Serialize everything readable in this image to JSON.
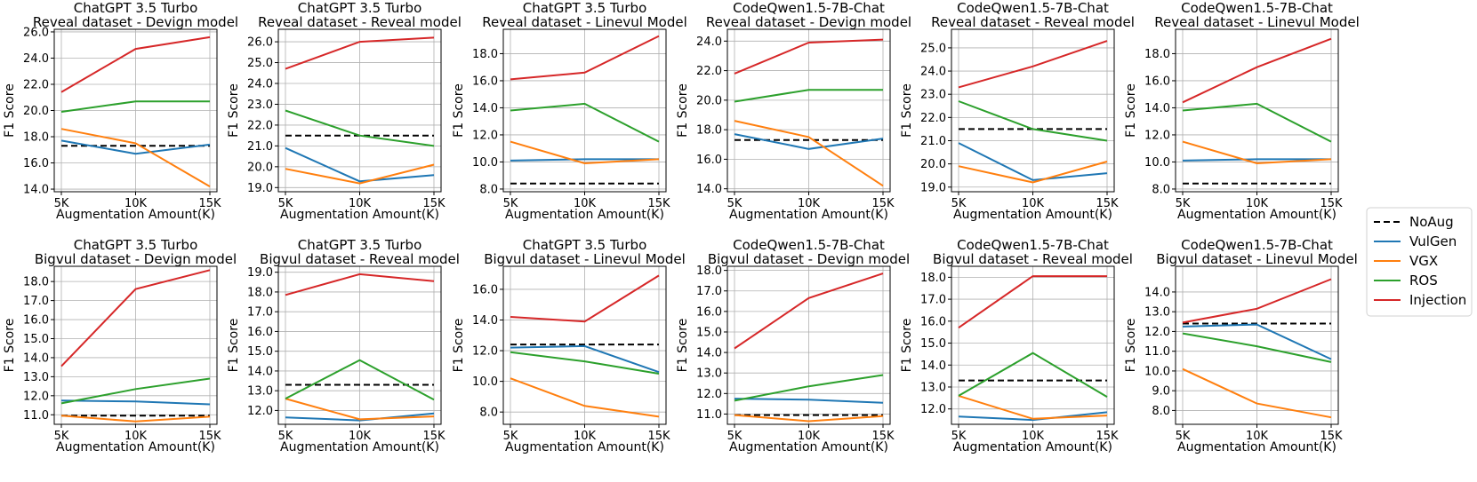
{
  "legend": {
    "position": "right",
    "entries": [
      {
        "name": "NoAug",
        "color": "#000000",
        "dashed": true
      },
      {
        "name": "VulGen",
        "color": "#1f77b4",
        "dashed": false
      },
      {
        "name": "VGX",
        "color": "#ff7f0e",
        "dashed": false
      },
      {
        "name": "ROS",
        "color": "#2ca02c",
        "dashed": false
      },
      {
        "name": "Injection",
        "color": "#d62728",
        "dashed": false
      }
    ]
  },
  "chart_data": [
    {
      "type": "line",
      "title": [
        "ChatGPT 3.5 Turbo",
        "Reveal dataset - Devign model"
      ],
      "xlabel": "Augmentation Amount(K)",
      "ylabel": "F1 Score",
      "categories": [
        "5K",
        "10K",
        "15K"
      ],
      "ylim": [
        13.8,
        26.2
      ],
      "yticks": [
        14,
        16,
        18,
        20,
        22,
        24,
        26
      ],
      "grid": true,
      "series": [
        {
          "name": "NoAug",
          "values": [
            17.3,
            17.3,
            17.3
          ]
        },
        {
          "name": "VulGen",
          "values": [
            17.7,
            16.7,
            17.4
          ]
        },
        {
          "name": "VGX",
          "values": [
            18.6,
            17.5,
            14.2
          ]
        },
        {
          "name": "ROS",
          "values": [
            19.9,
            20.7,
            20.7
          ]
        },
        {
          "name": "Injection",
          "values": [
            21.4,
            24.7,
            25.6
          ]
        }
      ]
    },
    {
      "type": "line",
      "title": [
        "ChatGPT 3.5 Turbo",
        "Reveal dataset - Reveal model"
      ],
      "xlabel": "Augmentation Amount(K)",
      "ylabel": "F1 Score",
      "categories": [
        "5K",
        "10K",
        "15K"
      ],
      "ylim": [
        18.8,
        26.6
      ],
      "yticks": [
        19,
        20,
        21,
        22,
        23,
        24,
        25,
        26
      ],
      "grid": true,
      "series": [
        {
          "name": "NoAug",
          "values": [
            21.5,
            21.5,
            21.5
          ]
        },
        {
          "name": "VulGen",
          "values": [
            20.9,
            19.3,
            19.6
          ]
        },
        {
          "name": "VGX",
          "values": [
            19.9,
            19.2,
            20.1
          ]
        },
        {
          "name": "ROS",
          "values": [
            22.7,
            21.5,
            21.0
          ]
        },
        {
          "name": "Injection",
          "values": [
            24.7,
            26.0,
            26.2
          ]
        }
      ]
    },
    {
      "type": "line",
      "title": [
        "ChatGPT 3.5 Turbo",
        "Reveal dataset - Linevul Model"
      ],
      "xlabel": "Augmentation Amount(K)",
      "ylabel": "F1 Score",
      "categories": [
        "5K",
        "10K",
        "15K"
      ],
      "ylim": [
        7.8,
        19.8
      ],
      "yticks": [
        8,
        10,
        12,
        14,
        16,
        18
      ],
      "grid": true,
      "series": [
        {
          "name": "NoAug",
          "values": [
            8.4,
            8.4,
            8.4
          ]
        },
        {
          "name": "VulGen",
          "values": [
            10.1,
            10.2,
            10.2
          ]
        },
        {
          "name": "VGX",
          "values": [
            11.5,
            9.9,
            10.2
          ]
        },
        {
          "name": "ROS",
          "values": [
            13.8,
            14.3,
            11.5
          ]
        },
        {
          "name": "Injection",
          "values": [
            16.1,
            16.6,
            19.3
          ]
        }
      ]
    },
    {
      "type": "line",
      "title": [
        "CodeQwen1.5-7B-Chat",
        "Reveal dataset - Devign model"
      ],
      "xlabel": "Augmentation Amount(K)",
      "ylabel": "F1 Score",
      "categories": [
        "5K",
        "10K",
        "15K"
      ],
      "ylim": [
        13.8,
        24.8
      ],
      "yticks": [
        14,
        16,
        18,
        20,
        22,
        24
      ],
      "grid": true,
      "series": [
        {
          "name": "NoAug",
          "values": [
            17.3,
            17.3,
            17.3
          ]
        },
        {
          "name": "VulGen",
          "values": [
            17.7,
            16.7,
            17.4
          ]
        },
        {
          "name": "VGX",
          "values": [
            18.6,
            17.5,
            14.2
          ]
        },
        {
          "name": "ROS",
          "values": [
            19.9,
            20.7,
            20.7
          ]
        },
        {
          "name": "Injection",
          "values": [
            21.8,
            23.9,
            24.1
          ]
        }
      ]
    },
    {
      "type": "line",
      "title": [
        "CodeQwen1.5-7B-Chat",
        "Reveal dataset - Reveal model"
      ],
      "xlabel": "Augmentation Amount(K)",
      "ylabel": "F1 Score",
      "categories": [
        "5K",
        "10K",
        "15K"
      ],
      "ylim": [
        18.8,
        25.8
      ],
      "yticks": [
        19,
        20,
        21,
        22,
        23,
        24,
        25
      ],
      "grid": true,
      "series": [
        {
          "name": "NoAug",
          "values": [
            21.5,
            21.5,
            21.5
          ]
        },
        {
          "name": "VulGen",
          "values": [
            20.9,
            19.3,
            19.6
          ]
        },
        {
          "name": "VGX",
          "values": [
            19.9,
            19.2,
            20.1
          ]
        },
        {
          "name": "ROS",
          "values": [
            22.7,
            21.5,
            21.0
          ]
        },
        {
          "name": "Injection",
          "values": [
            23.3,
            24.2,
            25.3
          ]
        }
      ]
    },
    {
      "type": "line",
      "title": [
        "CodeQwen1.5-7B-Chat",
        "Reveal dataset - Linevul Model"
      ],
      "xlabel": "Augmentation Amount(K)",
      "ylabel": "F1 Score",
      "categories": [
        "5K",
        "10K",
        "15K"
      ],
      "ylim": [
        7.8,
        19.8
      ],
      "yticks": [
        8,
        10,
        12,
        14,
        16,
        18
      ],
      "grid": true,
      "series": [
        {
          "name": "NoAug",
          "values": [
            8.4,
            8.4,
            8.4
          ]
        },
        {
          "name": "VulGen",
          "values": [
            10.1,
            10.2,
            10.2
          ]
        },
        {
          "name": "VGX",
          "values": [
            11.5,
            9.9,
            10.2
          ]
        },
        {
          "name": "ROS",
          "values": [
            13.8,
            14.3,
            11.5
          ]
        },
        {
          "name": "Injection",
          "values": [
            14.4,
            17.0,
            19.1
          ]
        }
      ]
    },
    {
      "type": "line",
      "title": [
        "ChatGPT 3.5 Turbo",
        "Bigvul dataset - Devign model"
      ],
      "xlabel": "Augmentation Amount(K)",
      "ylabel": "F1 Score",
      "categories": [
        "5K",
        "10K",
        "15K"
      ],
      "ylim": [
        10.5,
        18.8
      ],
      "yticks": [
        11,
        12,
        13,
        14,
        15,
        16,
        17,
        18
      ],
      "grid": true,
      "series": [
        {
          "name": "NoAug",
          "values": [
            10.95,
            10.95,
            10.95
          ]
        },
        {
          "name": "VulGen",
          "values": [
            11.75,
            11.7,
            11.55
          ]
        },
        {
          "name": "VGX",
          "values": [
            10.95,
            10.65,
            10.9
          ]
        },
        {
          "name": "ROS",
          "values": [
            11.6,
            12.35,
            12.9
          ]
        },
        {
          "name": "Injection",
          "values": [
            13.55,
            17.6,
            18.6
          ]
        }
      ]
    },
    {
      "type": "line",
      "title": [
        "ChatGPT 3.5 Turbo",
        "Bigvul dataset - Reveal model"
      ],
      "xlabel": "Augmentation Amount(K)",
      "ylabel": "F1 Score",
      "categories": [
        "5K",
        "10K",
        "15K"
      ],
      "ylim": [
        11.3,
        19.3
      ],
      "yticks": [
        12,
        13,
        14,
        15,
        16,
        17,
        18,
        19
      ],
      "grid": true,
      "series": [
        {
          "name": "NoAug",
          "values": [
            13.3,
            13.3,
            13.3
          ]
        },
        {
          "name": "VulGen",
          "values": [
            11.65,
            11.5,
            11.85
          ]
        },
        {
          "name": "VGX",
          "values": [
            12.6,
            11.55,
            11.7
          ]
        },
        {
          "name": "ROS",
          "values": [
            12.6,
            14.55,
            12.55
          ]
        },
        {
          "name": "Injection",
          "values": [
            17.85,
            18.9,
            18.55
          ]
        }
      ]
    },
    {
      "type": "line",
      "title": [
        "ChatGPT 3.5 Turbo",
        "Bigvul dataset - Linevul Model"
      ],
      "xlabel": "Augmentation Amount(K)",
      "ylabel": "F1 Score",
      "categories": [
        "5K",
        "10K",
        "15K"
      ],
      "ylim": [
        7.2,
        17.5
      ],
      "yticks": [
        8,
        10,
        12,
        14,
        16
      ],
      "grid": true,
      "series": [
        {
          "name": "NoAug",
          "values": [
            12.4,
            12.4,
            12.4
          ]
        },
        {
          "name": "VulGen",
          "values": [
            12.2,
            12.3,
            10.6
          ]
        },
        {
          "name": "VGX",
          "values": [
            10.2,
            8.4,
            7.7
          ]
        },
        {
          "name": "ROS",
          "values": [
            11.9,
            11.3,
            10.5
          ]
        },
        {
          "name": "Injection",
          "values": [
            14.2,
            13.9,
            16.9
          ]
        }
      ]
    },
    {
      "type": "line",
      "title": [
        "CodeQwen1.5-7B-Chat",
        "Bigvul dataset - Devign model"
      ],
      "xlabel": "Augmentation Amount(K)",
      "ylabel": "F1 Score",
      "categories": [
        "5K",
        "10K",
        "15K"
      ],
      "ylim": [
        10.5,
        18.2
      ],
      "yticks": [
        11,
        12,
        13,
        14,
        15,
        16,
        17,
        18
      ],
      "grid": true,
      "series": [
        {
          "name": "NoAug",
          "values": [
            10.95,
            10.95,
            10.95
          ]
        },
        {
          "name": "VulGen",
          "values": [
            11.75,
            11.7,
            11.55
          ]
        },
        {
          "name": "VGX",
          "values": [
            10.95,
            10.65,
            10.9
          ]
        },
        {
          "name": "ROS",
          "values": [
            11.65,
            12.35,
            12.9
          ]
        },
        {
          "name": "Injection",
          "values": [
            14.2,
            16.65,
            17.85
          ]
        }
      ]
    },
    {
      "type": "line",
      "title": [
        "CodeQwen1.5-7B-Chat",
        "Bigvul dataset - Reveal model"
      ],
      "xlabel": "Augmentation Amount(K)",
      "ylabel": "F1 Score",
      "categories": [
        "5K",
        "10K",
        "15K"
      ],
      "ylim": [
        11.3,
        18.5
      ],
      "yticks": [
        12,
        13,
        14,
        15,
        16,
        17,
        18
      ],
      "grid": true,
      "series": [
        {
          "name": "NoAug",
          "values": [
            13.3,
            13.3,
            13.3
          ]
        },
        {
          "name": "VulGen",
          "values": [
            11.65,
            11.5,
            11.85
          ]
        },
        {
          "name": "VGX",
          "values": [
            12.6,
            11.55,
            11.7
          ]
        },
        {
          "name": "ROS",
          "values": [
            12.6,
            14.55,
            12.55
          ]
        },
        {
          "name": "Injection",
          "values": [
            15.7,
            18.05,
            18.05
          ]
        }
      ]
    },
    {
      "type": "line",
      "title": [
        "CodeQwen1.5-7B-Chat",
        "Bigvul dataset - Linevul Model"
      ],
      "xlabel": "Augmentation Amount(K)",
      "ylabel": "F1 Score",
      "categories": [
        "5K",
        "10K",
        "15K"
      ],
      "ylim": [
        7.3,
        15.3
      ],
      "yticks": [
        8,
        9,
        10,
        11,
        12,
        13,
        14
      ],
      "grid": true,
      "series": [
        {
          "name": "NoAug",
          "values": [
            12.4,
            12.4,
            12.4
          ]
        },
        {
          "name": "VulGen",
          "values": [
            12.25,
            12.35,
            10.6
          ]
        },
        {
          "name": "VGX",
          "values": [
            10.1,
            8.35,
            7.65
          ]
        },
        {
          "name": "ROS",
          "values": [
            11.9,
            11.25,
            10.45
          ]
        },
        {
          "name": "Injection",
          "values": [
            12.45,
            13.15,
            14.65
          ]
        }
      ]
    }
  ]
}
